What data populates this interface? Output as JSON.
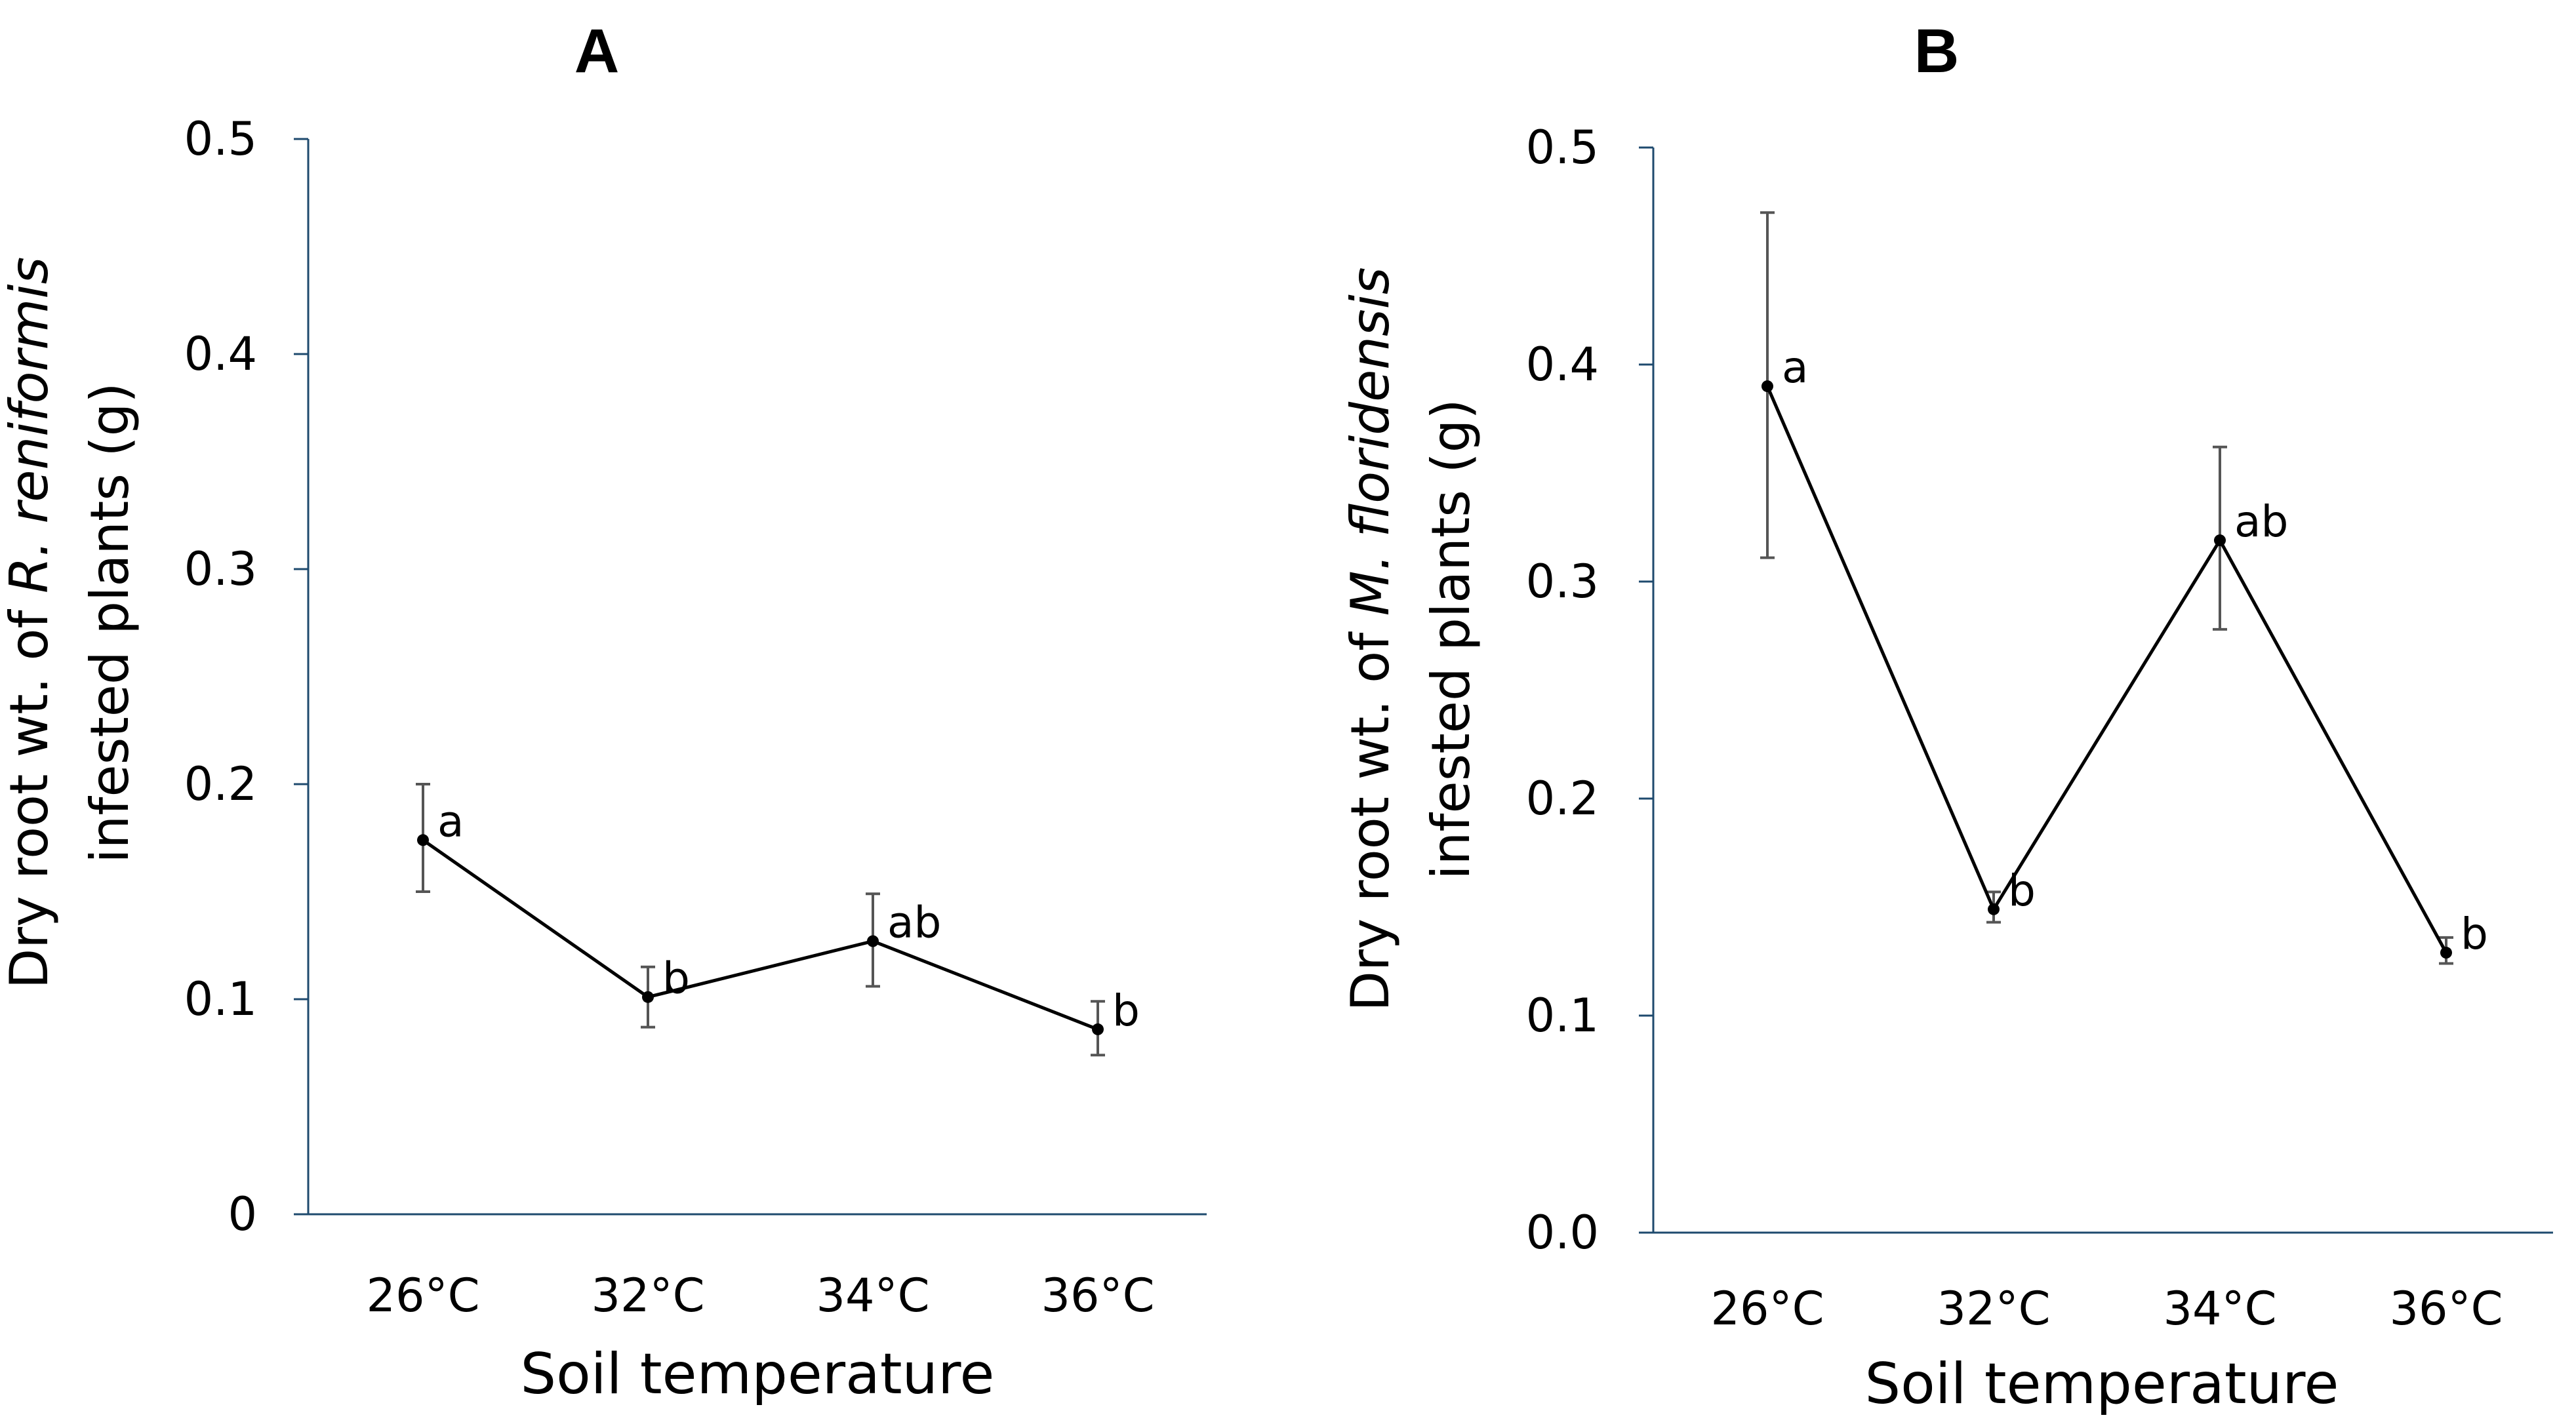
{
  "colors": {
    "axis": "#1e4a6e",
    "line": "#000000",
    "error_bar": "#555555",
    "text": "#000000",
    "background": "#ffffff"
  },
  "chart_data": [
    {
      "type": "line",
      "panel": "A",
      "title": "A",
      "categories": [
        "26°C",
        "32°C",
        "34°C",
        "36°C"
      ],
      "series": [
        {
          "name": "R. reniformis",
          "values": [
            0.174,
            0.101,
            0.127,
            0.086
          ],
          "error_low": [
            0.15,
            0.087,
            0.106,
            0.074
          ],
          "error_high": [
            0.2,
            0.115,
            0.149,
            0.099
          ],
          "point_labels": [
            "a",
            "b",
            "ab",
            "b"
          ]
        }
      ],
      "xlabel": "Soil temperature",
      "ylabel_prefix": "Dry root wt. of ",
      "ylabel_italic": "R. reniformis",
      "ylabel_line2": "infested plants (g)",
      "ylim": [
        0,
        0.5
      ],
      "yticks": [
        0,
        0.1,
        0.2,
        0.3,
        0.4,
        0.5
      ],
      "ytick_labels": [
        "0",
        "0.1",
        "0.2",
        "0.3",
        "0.4",
        "0.5"
      ],
      "grid": false,
      "legend": "none"
    },
    {
      "type": "line",
      "panel": "B",
      "title": "B",
      "categories": [
        "26°C",
        "32°C",
        "34°C",
        "36°C"
      ],
      "series": [
        {
          "name": "M. floridensis",
          "values": [
            0.39,
            0.149,
            0.319,
            0.129
          ],
          "error_low": [
            0.311,
            0.143,
            0.278,
            0.124
          ],
          "error_high": [
            0.47,
            0.157,
            0.362,
            0.136
          ],
          "point_labels": [
            "a",
            "b",
            "ab",
            "b"
          ]
        }
      ],
      "xlabel": "Soil temperature",
      "ylabel_prefix": "Dry root wt. of ",
      "ylabel_italic": "M. floridensis",
      "ylabel_line2": "infested plants (g)",
      "ylim": [
        0,
        0.5
      ],
      "yticks": [
        0,
        0.1,
        0.2,
        0.3,
        0.4,
        0.5
      ],
      "ytick_labels": [
        "0.0",
        "0.1",
        "0.2",
        "0.3",
        "0.4",
        "0.5"
      ],
      "grid": false,
      "legend": "none"
    }
  ]
}
